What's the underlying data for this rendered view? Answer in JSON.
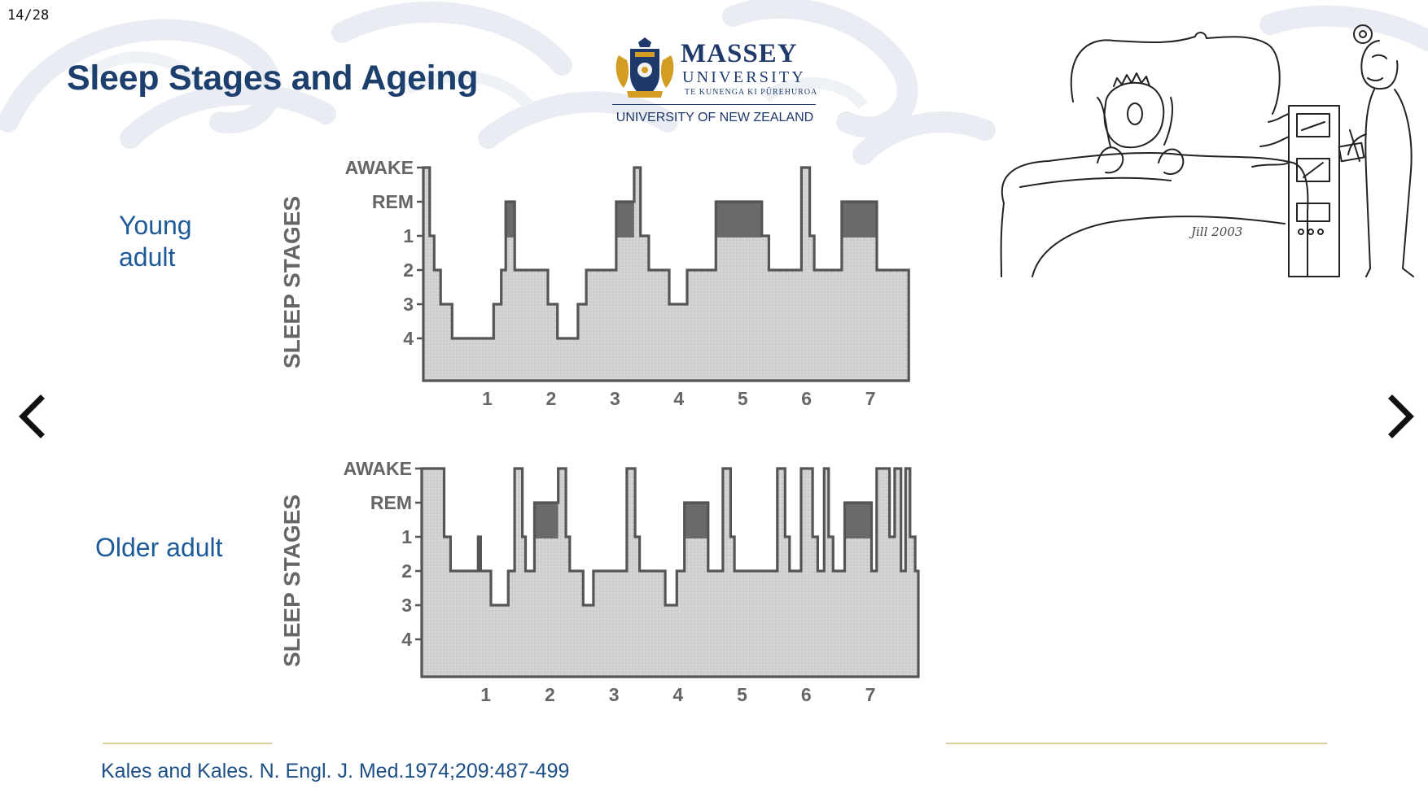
{
  "slide": {
    "counter": "14/28",
    "title": "Sleep Stages and Ageing",
    "citation": "Kales and Kales. N. Engl. J. Med.1974;209:487-499"
  },
  "logo": {
    "name": "MASSEY",
    "line2": "UNIVERSITY",
    "line3": "TE KUNENGA KI PŪREHUROA",
    "line4": "UNIVERSITY OF NEW ZEALAND"
  },
  "cartoon": {
    "signature": "Jill 2003"
  },
  "labels": {
    "young": [
      "Young",
      "adult"
    ],
    "older": "Older adult"
  },
  "nav": {
    "prev_icon": "chevron-left-icon",
    "next_icon": "chevron-right-icon"
  },
  "colors": {
    "title": "#1c3f6e",
    "label": "#1c5a9a",
    "fill": "#d4d4d4",
    "rem": "#6a6a6a",
    "rule": "#d8cf9a"
  },
  "chart_data": [
    {
      "type": "area",
      "name": "young",
      "ylabel": "SLEEP STAGES",
      "yticks": [
        "AWAKE",
        "REM",
        "1",
        "2",
        "3",
        "4"
      ],
      "xticks": [
        "1",
        "2",
        "3",
        "4",
        "5",
        "6",
        "7"
      ],
      "xlim": [
        0,
        7.75
      ],
      "steps": [
        [
          0,
          0
        ],
        [
          0.1,
          0
        ],
        [
          0.1,
          2
        ],
        [
          0.17,
          2
        ],
        [
          0.17,
          3
        ],
        [
          0.27,
          3
        ],
        [
          0.27,
          4
        ],
        [
          0.45,
          4
        ],
        [
          0.45,
          5
        ],
        [
          1.1,
          5
        ],
        [
          1.1,
          4
        ],
        [
          1.22,
          4
        ],
        [
          1.22,
          3
        ],
        [
          1.29,
          3
        ],
        [
          1.29,
          1
        ],
        [
          1.43,
          1
        ],
        [
          1.43,
          3
        ],
        [
          1.95,
          3
        ],
        [
          1.95,
          4
        ],
        [
          2.1,
          4
        ],
        [
          2.1,
          5
        ],
        [
          2.42,
          5
        ],
        [
          2.42,
          4
        ],
        [
          2.55,
          4
        ],
        [
          2.55,
          3
        ],
        [
          3.02,
          3
        ],
        [
          3.02,
          1
        ],
        [
          3.3,
          1
        ],
        [
          3.3,
          0
        ],
        [
          3.4,
          0
        ],
        [
          3.4,
          2
        ],
        [
          3.53,
          2
        ],
        [
          3.53,
          3
        ],
        [
          3.85,
          3
        ],
        [
          3.85,
          4
        ],
        [
          4.13,
          4
        ],
        [
          4.13,
          3
        ],
        [
          4.58,
          3
        ],
        [
          4.58,
          1
        ],
        [
          5.3,
          1
        ],
        [
          5.3,
          2
        ],
        [
          5.41,
          2
        ],
        [
          5.41,
          3
        ],
        [
          5.92,
          3
        ],
        [
          5.92,
          0
        ],
        [
          6.05,
          0
        ],
        [
          6.05,
          2
        ],
        [
          6.12,
          2
        ],
        [
          6.12,
          3
        ],
        [
          6.55,
          3
        ],
        [
          6.55,
          1
        ],
        [
          7.1,
          1
        ],
        [
          7.1,
          3
        ],
        [
          7.6,
          3
        ]
      ],
      "rem_periods": [
        [
          1.29,
          1.43
        ],
        [
          3.02,
          3.3
        ],
        [
          4.58,
          5.3
        ],
        [
          6.55,
          7.1
        ]
      ]
    },
    {
      "type": "area",
      "name": "older",
      "ylabel": "SLEEP STAGES",
      "yticks": [
        "AWAKE",
        "REM",
        "1",
        "2",
        "3",
        "4"
      ],
      "xticks": [
        "1",
        "2",
        "3",
        "4",
        "5",
        "6",
        "7"
      ],
      "xlim": [
        0,
        7.75
      ],
      "steps": [
        [
          0,
          0
        ],
        [
          0.35,
          0
        ],
        [
          0.35,
          2
        ],
        [
          0.45,
          2
        ],
        [
          0.45,
          3
        ],
        [
          0.88,
          3
        ],
        [
          0.88,
          2
        ],
        [
          0.92,
          2
        ],
        [
          0.92,
          3
        ],
        [
          1.08,
          3
        ],
        [
          1.08,
          4
        ],
        [
          1.35,
          4
        ],
        [
          1.35,
          3
        ],
        [
          1.45,
          3
        ],
        [
          1.45,
          0
        ],
        [
          1.57,
          0
        ],
        [
          1.57,
          2
        ],
        [
          1.62,
          2
        ],
        [
          1.62,
          3
        ],
        [
          1.76,
          3
        ],
        [
          1.76,
          1
        ],
        [
          2.13,
          1
        ],
        [
          2.13,
          0
        ],
        [
          2.25,
          0
        ],
        [
          2.25,
          2
        ],
        [
          2.31,
          2
        ],
        [
          2.31,
          3
        ],
        [
          2.52,
          3
        ],
        [
          2.52,
          4
        ],
        [
          2.68,
          4
        ],
        [
          2.68,
          3
        ],
        [
          3.2,
          3
        ],
        [
          3.2,
          0
        ],
        [
          3.33,
          0
        ],
        [
          3.33,
          2
        ],
        [
          3.4,
          2
        ],
        [
          3.4,
          3
        ],
        [
          3.8,
          3
        ],
        [
          3.8,
          4
        ],
        [
          3.98,
          4
        ],
        [
          3.98,
          3
        ],
        [
          4.1,
          3
        ],
        [
          4.1,
          1
        ],
        [
          4.47,
          1
        ],
        [
          4.47,
          3
        ],
        [
          4.7,
          3
        ],
        [
          4.7,
          0
        ],
        [
          4.82,
          0
        ],
        [
          4.82,
          2
        ],
        [
          4.88,
          2
        ],
        [
          4.88,
          3
        ],
        [
          5.55,
          3
        ],
        [
          5.55,
          0
        ],
        [
          5.67,
          0
        ],
        [
          5.67,
          2
        ],
        [
          5.74,
          2
        ],
        [
          5.74,
          3
        ],
        [
          5.92,
          3
        ],
        [
          5.92,
          0
        ],
        [
          6.1,
          0
        ],
        [
          6.1,
          2
        ],
        [
          6.18,
          2
        ],
        [
          6.18,
          3
        ],
        [
          6.28,
          3
        ],
        [
          6.28,
          0
        ],
        [
          6.35,
          0
        ],
        [
          6.35,
          2
        ],
        [
          6.42,
          2
        ],
        [
          6.42,
          3
        ],
        [
          6.6,
          3
        ],
        [
          6.6,
          1
        ],
        [
          7.02,
          1
        ],
        [
          7.02,
          3
        ],
        [
          7.1,
          3
        ],
        [
          7.1,
          0
        ],
        [
          7.3,
          0
        ],
        [
          7.3,
          2
        ],
        [
          7.38,
          2
        ],
        [
          7.38,
          0
        ],
        [
          7.48,
          0
        ],
        [
          7.48,
          3
        ],
        [
          7.55,
          3
        ],
        [
          7.55,
          0
        ],
        [
          7.62,
          0
        ],
        [
          7.62,
          2
        ],
        [
          7.7,
          2
        ],
        [
          7.7,
          3
        ],
        [
          7.75,
          3
        ]
      ],
      "rem_periods": [
        [
          1.76,
          2.13
        ],
        [
          4.1,
          4.47
        ],
        [
          6.6,
          7.02
        ]
      ]
    }
  ]
}
